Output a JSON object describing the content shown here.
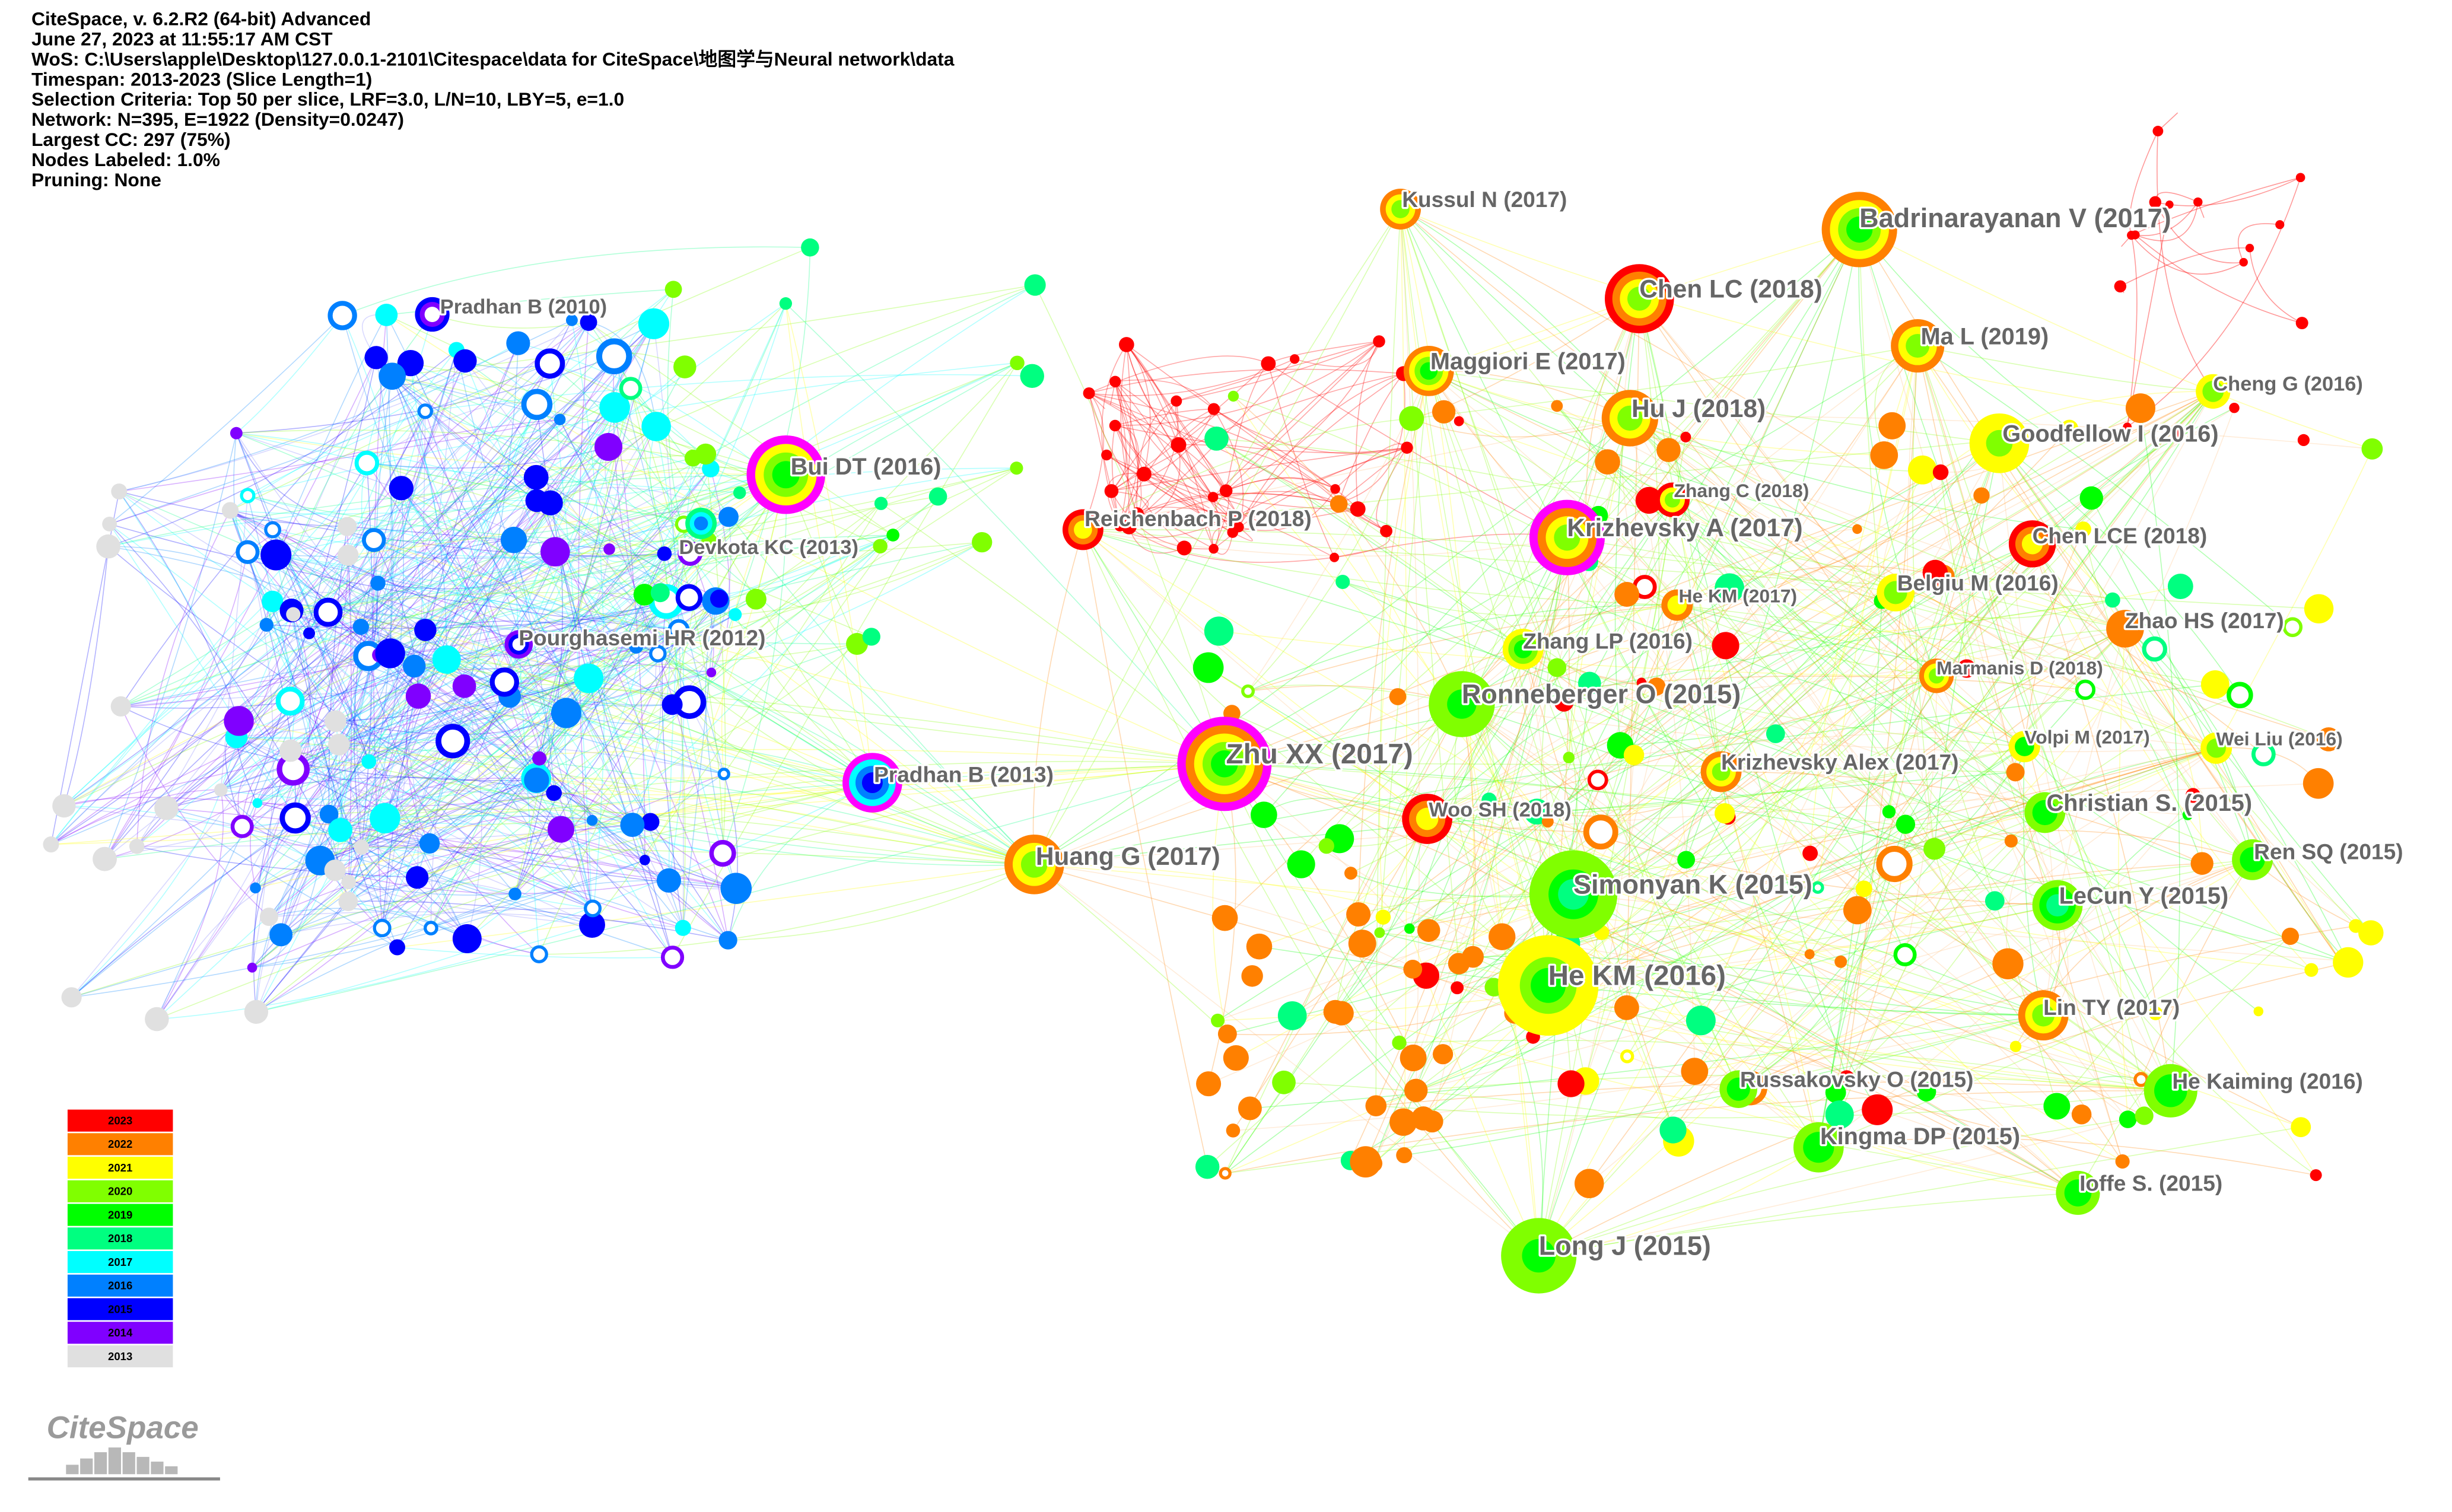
{
  "header": {
    "lines": [
      "CiteSpace, v. 6.2.R2 (64-bit) Advanced",
      "June 27, 2023 at 11:55:17 AM CST",
      "WoS: C:\\Users\\apple\\Desktop\\127.0.0.1-2101\\Citespace\\data for CiteSpace\\地图学与Neural network\\data",
      "Timespan: 2013-2023 (Slice Length=1)",
      "Selection Criteria: Top 50 per slice, LRF=3.0, L/N=10, LBY=5, e=1.0",
      "Network: N=395, E=1922 (Density=0.0247)",
      "Largest CC: 297 (75%)",
      "Nodes Labeled: 1.0%",
      "Pruning: None"
    ]
  },
  "nodes": [
    {
      "label": "Pradhan B (2010)"
    },
    {
      "label": "Bui DT (2016)"
    },
    {
      "label": "Devkota KC (2013)"
    },
    {
      "label": "Pourghasemi HR (2012)"
    },
    {
      "label": "Pradhan B (2013)"
    },
    {
      "label": "Kussul N (2017)"
    },
    {
      "label": "Badrinarayanan V (2017)"
    },
    {
      "label": "Chen LC (2018)"
    },
    {
      "label": "Ma L (2019)"
    },
    {
      "label": "Maggiori E (2017)"
    },
    {
      "label": "Hu J (2018)"
    },
    {
      "label": "Cheng G (2016)"
    },
    {
      "label": "Goodfellow I (2016)"
    },
    {
      "label": "Zhang C (2018)"
    },
    {
      "label": "Krizhevsky A (2017)"
    },
    {
      "label": "Reichenbach P (2018)"
    },
    {
      "label": "Chen LCE (2018)"
    },
    {
      "label": "He KM (2017)"
    },
    {
      "label": "Belgiu M (2016)"
    },
    {
      "label": "Zhao HS (2017)"
    },
    {
      "label": "Zhang LP (2016)"
    },
    {
      "label": "Marmanis D (2018)"
    },
    {
      "label": "Ronneberger O (2015)"
    },
    {
      "label": "Volpi M (2017)"
    },
    {
      "label": "Wei Liu (2016)"
    },
    {
      "label": "Zhu XX (2017)"
    },
    {
      "label": "Krizhevsky Alex (2017)"
    },
    {
      "label": "Woo SH (2018)"
    },
    {
      "label": "Christian S. (2015)"
    },
    {
      "label": "Huang G (2017)"
    },
    {
      "label": "Ren SQ (2015)"
    },
    {
      "label": "Simonyan K (2015)"
    },
    {
      "label": "LeCun Y (2015)"
    },
    {
      "label": "He KM (2016)"
    },
    {
      "label": "Lin TY (2017)"
    },
    {
      "label": "Russakovsky O (2015)"
    },
    {
      "label": "He Kaiming (2016)"
    },
    {
      "label": "Kingma DP (2015)"
    },
    {
      "label": "Ioffe S. (2015)"
    },
    {
      "label": "Long J (2015)"
    }
  ],
  "legend": {
    "years": [
      "2023",
      "2022",
      "2021",
      "2020",
      "2019",
      "2018",
      "2017",
      "2016",
      "2015",
      "2014",
      "2013"
    ]
  },
  "logo": "CiteSpace"
}
